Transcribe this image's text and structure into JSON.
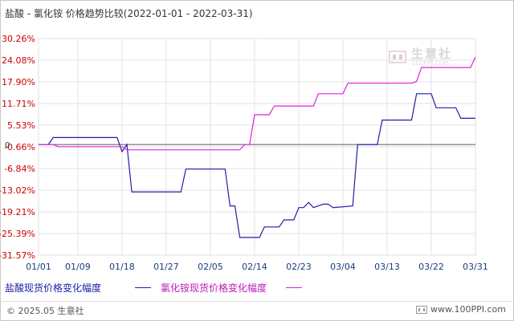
{
  "title": "盐酸 - 氯化铵 价格趋势比较(2022-01-01 - 2022-03-31)",
  "legend": {
    "series1": "盐酸现货价格变化幅度",
    "series2": "氯化铵现货价格变化幅度"
  },
  "footer": {
    "copyright": "© 2025.05 生意社",
    "url": "www.100PPI.com"
  },
  "watermark": {
    "name": "生意社",
    "url": "100PPI.com"
  },
  "colors": {
    "series1": "#1f1fa8",
    "series2": "#e020e0",
    "grid": "#e2e2e2",
    "zero": "#555555",
    "axis_text": "#cc0000",
    "x_text": "#1a3d80"
  },
  "chart_data": {
    "type": "line",
    "title": "盐酸 - 氯化铵 价格趋势比较(2022-01-01 - 2022-03-31)",
    "xlabel": "",
    "ylabel": "",
    "x_range": [
      "2022-01-01",
      "2022-03-31"
    ],
    "ylim": [
      -31.57,
      30.26
    ],
    "y_ticks": [
      30.26,
      24.08,
      17.9,
      11.71,
      5.53,
      -0.66,
      -6.84,
      -13.02,
      -19.21,
      -25.39,
      -31.57
    ],
    "y_tick_labels": [
      "30.26%",
      "24.08%",
      "17.90%",
      "11.71%",
      "5.53%",
      "-0.66%",
      "-6.84%",
      "-13.02%",
      "-19.21%",
      "-25.39%",
      "-31.57%"
    ],
    "zero_label": "0",
    "x_ticks": [
      "2022-01-01",
      "2022-01-09",
      "2022-01-18",
      "2022-01-27",
      "2022-02-05",
      "2022-02-14",
      "2022-02-23",
      "2022-03-04",
      "2022-03-13",
      "2022-03-22",
      "2022-03-31"
    ],
    "x_tick_labels": [
      "01/01",
      "01/09",
      "01/18",
      "01/27",
      "02/05",
      "02/14",
      "02/23",
      "03/04",
      "03/13",
      "03/22",
      "03/31"
    ],
    "grid": true,
    "legend_position": "bottom-left",
    "series": [
      {
        "name": "盐酸现货价格变化幅度",
        "points": [
          [
            "2022-01-01",
            0
          ],
          [
            "2022-01-03",
            0
          ],
          [
            "2022-01-04",
            2
          ],
          [
            "2022-01-17",
            2
          ],
          [
            "2022-01-18",
            -2
          ],
          [
            "2022-01-19",
            0
          ],
          [
            "2022-01-20",
            -13.5
          ],
          [
            "2022-01-30",
            -13.5
          ],
          [
            "2022-01-31",
            -7
          ],
          [
            "2022-02-08",
            -7
          ],
          [
            "2022-02-09",
            -17.5
          ],
          [
            "2022-02-10",
            -17.5
          ],
          [
            "2022-02-11",
            -26.5
          ],
          [
            "2022-02-15",
            -26.5
          ],
          [
            "2022-02-16",
            -23.5
          ],
          [
            "2022-02-19",
            -23.5
          ],
          [
            "2022-02-20",
            -21.5
          ],
          [
            "2022-02-22",
            -21.5
          ],
          [
            "2022-02-23",
            -18
          ],
          [
            "2022-02-24",
            -18
          ],
          [
            "2022-02-25",
            -16.5
          ],
          [
            "2022-02-26",
            -18
          ],
          [
            "2022-02-28",
            -17
          ],
          [
            "2022-03-01",
            -17
          ],
          [
            "2022-03-02",
            -18
          ],
          [
            "2022-03-06",
            -17.5
          ],
          [
            "2022-03-07",
            0
          ],
          [
            "2022-03-11",
            0
          ],
          [
            "2022-03-12",
            7
          ],
          [
            "2022-03-18",
            7
          ],
          [
            "2022-03-19",
            14.5
          ],
          [
            "2022-03-22",
            14.5
          ],
          [
            "2022-03-23",
            10.5
          ],
          [
            "2022-03-27",
            10.5
          ],
          [
            "2022-03-28",
            7.5
          ],
          [
            "2022-03-31",
            7.5
          ]
        ]
      },
      {
        "name": "氯化铵现货价格变化幅度",
        "points": [
          [
            "2022-01-01",
            0
          ],
          [
            "2022-01-04",
            0
          ],
          [
            "2022-01-05",
            -0.6
          ],
          [
            "2022-01-18",
            -0.6
          ],
          [
            "2022-01-19",
            -1.5
          ],
          [
            "2022-02-11",
            -1.5
          ],
          [
            "2022-02-12",
            0
          ],
          [
            "2022-02-13",
            0
          ],
          [
            "2022-02-14",
            8.5
          ],
          [
            "2022-02-17",
            8.5
          ],
          [
            "2022-02-18",
            11
          ],
          [
            "2022-02-26",
            11
          ],
          [
            "2022-02-27",
            14.5
          ],
          [
            "2022-03-04",
            14.5
          ],
          [
            "2022-03-05",
            17.5
          ],
          [
            "2022-03-18",
            17.5
          ],
          [
            "2022-03-19",
            18
          ],
          [
            "2022-03-20",
            22
          ],
          [
            "2022-03-30",
            22
          ],
          [
            "2022-03-31",
            25
          ]
        ]
      }
    ]
  }
}
